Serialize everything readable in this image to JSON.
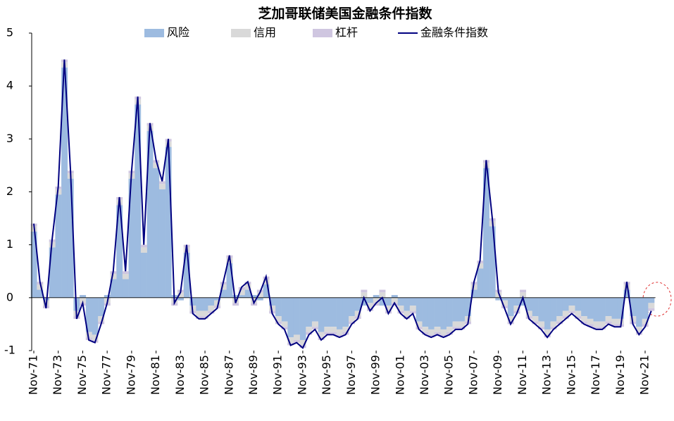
{
  "chart_data": {
    "type": "stacked_bar_line",
    "title": "芝加哥联储美国金融条件指数",
    "categories": [
      "Nov-71",
      null,
      null,
      null,
      "Nov-73",
      null,
      null,
      null,
      "Nov-75",
      null,
      null,
      null,
      "Nov-77",
      null,
      null,
      null,
      "Nov-79",
      null,
      null,
      null,
      "Nov-81",
      null,
      null,
      null,
      "Nov-83",
      null,
      null,
      null,
      "Nov-85",
      null,
      null,
      null,
      "Nov-87",
      null,
      null,
      null,
      "Nov-89",
      null,
      null,
      null,
      "Nov-91",
      null,
      null,
      null,
      "Nov-93",
      null,
      null,
      null,
      "Nov-95",
      null,
      null,
      null,
      "Nov-97",
      null,
      null,
      null,
      "Nov-99",
      null,
      null,
      null,
      "Nov-01",
      null,
      null,
      null,
      "Nov-03",
      null,
      null,
      null,
      "Nov-05",
      null,
      null,
      null,
      "Nov-07",
      null,
      null,
      null,
      "Nov-09",
      null,
      null,
      null,
      "Nov-11",
      null,
      null,
      null,
      "Nov-13",
      null,
      null,
      null,
      "Nov-15",
      null,
      null,
      null,
      "Nov-17",
      null,
      null,
      null,
      "Nov-19",
      null,
      null,
      null,
      "Nov-21",
      null
    ],
    "series": [
      {
        "name": "风险",
        "color": "#9dbbe0",
        "values": [
          1.25,
          0.15,
          -0.05,
          0.95,
          1.95,
          4.35,
          2.25,
          -0.25,
          0.05,
          -0.65,
          -0.7,
          -0.35,
          0.05,
          0.35,
          1.75,
          0.35,
          2.25,
          3.65,
          0.85,
          3.15,
          2.45,
          2.05,
          2.85,
          0.05,
          -0.05,
          0.85,
          -0.15,
          -0.25,
          -0.25,
          -0.15,
          -0.05,
          0.15,
          0.65,
          0.05,
          0.05,
          0.15,
          0.05,
          -0.05,
          0.25,
          -0.15,
          -0.35,
          -0.45,
          -0.75,
          -0.7,
          -0.8,
          -0.55,
          -0.45,
          -0.65,
          -0.55,
          -0.55,
          -0.6,
          -0.55,
          -0.35,
          -0.25,
          -0.15,
          -0.1,
          0.05,
          -0.15,
          -0.15,
          0.05,
          -0.15,
          -0.25,
          -0.15,
          -0.45,
          -0.55,
          -0.6,
          -0.55,
          -0.6,
          -0.55,
          -0.45,
          -0.45,
          -0.35,
          0.15,
          0.55,
          2.45,
          1.35,
          -0.05,
          -0.05,
          -0.35,
          -0.15,
          -0.15,
          -0.25,
          -0.35,
          -0.45,
          -0.6,
          -0.45,
          -0.35,
          -0.25,
          -0.15,
          -0.25,
          -0.35,
          -0.4,
          -0.45,
          -0.45,
          -0.35,
          -0.4,
          -0.4,
          0.15,
          -0.35,
          -0.55,
          -0.4,
          -0.1
        ]
      },
      {
        "name": "信用",
        "color": "#d9d9d9",
        "values": [
          0.1,
          0.1,
          -0.1,
          0.1,
          0.1,
          0.1,
          0.1,
          -0.1,
          -0.1,
          -0.1,
          -0.1,
          -0.1,
          -0.1,
          0.1,
          0.1,
          0.1,
          0.1,
          0.1,
          0.1,
          0.1,
          0.1,
          0.1,
          0.1,
          -0.1,
          0.1,
          0.1,
          -0.1,
          -0.1,
          -0.1,
          -0.1,
          -0.1,
          0.1,
          0.1,
          -0.1,
          0.1,
          0.1,
          -0.1,
          0.1,
          0.1,
          -0.1,
          -0.1,
          -0.1,
          -0.1,
          -0.1,
          -0.1,
          -0.1,
          -0.1,
          -0.1,
          -0.1,
          -0.1,
          -0.1,
          -0.1,
          -0.1,
          -0.1,
          0.1,
          -0.1,
          -0.1,
          0.1,
          -0.1,
          -0.1,
          -0.1,
          -0.1,
          -0.1,
          -0.1,
          -0.1,
          -0.1,
          -0.1,
          -0.1,
          -0.1,
          -0.1,
          -0.1,
          -0.1,
          0.1,
          0.1,
          0.1,
          0.1,
          0.1,
          -0.1,
          -0.1,
          -0.1,
          0.1,
          -0.1,
          -0.1,
          -0.1,
          -0.1,
          -0.1,
          -0.1,
          -0.1,
          -0.1,
          -0.1,
          -0.1,
          -0.1,
          -0.1,
          -0.1,
          -0.1,
          -0.1,
          -0.1,
          0.1,
          -0.1,
          -0.1,
          -0.1,
          -0.1
        ]
      },
      {
        "name": "杠杆",
        "color": "#cfc6e0",
        "values": [
          0.05,
          0.05,
          -0.05,
          0.05,
          0.05,
          0.05,
          0.05,
          -0.05,
          -0.05,
          -0.05,
          -0.05,
          -0.05,
          -0.05,
          0.05,
          0.05,
          0.05,
          0.05,
          0.05,
          0.05,
          0.05,
          0.05,
          0.05,
          0.05,
          -0.05,
          0.05,
          0.05,
          -0.05,
          -0.05,
          -0.05,
          -0.05,
          -0.05,
          0.05,
          0.05,
          -0.05,
          0.05,
          0.05,
          -0.05,
          0.05,
          0.05,
          -0.05,
          -0.05,
          -0.05,
          -0.05,
          -0.05,
          -0.05,
          -0.05,
          -0.05,
          -0.05,
          -0.05,
          -0.05,
          -0.05,
          -0.05,
          -0.05,
          -0.05,
          0.05,
          -0.05,
          -0.05,
          0.05,
          -0.05,
          -0.05,
          -0.05,
          -0.05,
          -0.05,
          -0.05,
          -0.05,
          -0.05,
          -0.05,
          -0.05,
          -0.05,
          -0.05,
          -0.05,
          -0.05,
          0.05,
          0.05,
          0.05,
          0.05,
          0.05,
          -0.05,
          -0.05,
          -0.05,
          0.05,
          -0.05,
          -0.05,
          -0.05,
          -0.05,
          -0.05,
          -0.05,
          -0.05,
          -0.05,
          -0.05,
          -0.05,
          -0.05,
          -0.05,
          -0.05,
          -0.05,
          -0.05,
          -0.05,
          0.05,
          -0.05,
          -0.05,
          -0.05,
          -0.05
        ]
      },
      {
        "name": "金融条件指数",
        "color": "#000080",
        "type": "line",
        "values": [
          1.4,
          0.3,
          -0.2,
          1.1,
          2.1,
          4.5,
          2.4,
          -0.4,
          -0.1,
          -0.8,
          -0.85,
          -0.5,
          -0.1,
          0.5,
          1.9,
          0.5,
          2.4,
          3.8,
          1.0,
          3.3,
          2.6,
          2.2,
          3.0,
          -0.1,
          0.1,
          1.0,
          -0.3,
          -0.4,
          -0.4,
          -0.3,
          -0.2,
          0.3,
          0.8,
          -0.1,
          0.2,
          0.3,
          -0.1,
          0.1,
          0.4,
          -0.3,
          -0.5,
          -0.6,
          -0.9,
          -0.85,
          -0.95,
          -0.7,
          -0.6,
          -0.8,
          -0.7,
          -0.7,
          -0.75,
          -0.7,
          -0.5,
          -0.4,
          0.0,
          -0.25,
          -0.1,
          0.0,
          -0.3,
          -0.1,
          -0.3,
          -0.4,
          -0.3,
          -0.6,
          -0.7,
          -0.75,
          -0.7,
          -0.75,
          -0.7,
          -0.6,
          -0.6,
          -0.5,
          0.3,
          0.7,
          2.6,
          1.5,
          0.1,
          -0.2,
          -0.5,
          -0.3,
          0.0,
          -0.4,
          -0.5,
          -0.6,
          -0.75,
          -0.6,
          -0.5,
          -0.4,
          -0.3,
          -0.4,
          -0.5,
          -0.55,
          -0.6,
          -0.6,
          -0.5,
          -0.55,
          -0.55,
          0.3,
          -0.5,
          -0.7,
          -0.55,
          -0.25
        ]
      }
    ],
    "ylim": [
      -1,
      5
    ],
    "yticks": [
      -1,
      0,
      1,
      2,
      3,
      4,
      5
    ]
  }
}
